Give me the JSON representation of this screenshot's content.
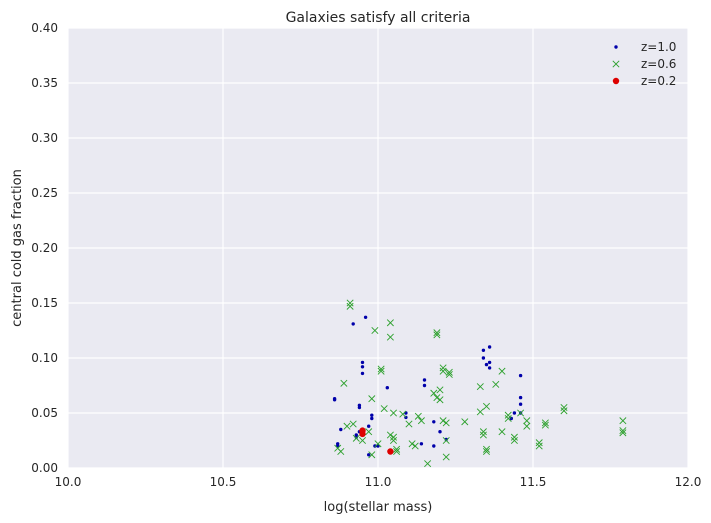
{
  "chart_data": {
    "type": "scatter",
    "title": "Galaxies satisfy all criteria",
    "xlabel": "log(stellar mass)",
    "ylabel": "central cold gas fraction",
    "xlim": [
      10.0,
      12.0
    ],
    "ylim": [
      0.0,
      0.4
    ],
    "xticks": [
      "10.0",
      "10.5",
      "11.0",
      "11.5",
      "12.0"
    ],
    "yticks": [
      "0.00",
      "0.05",
      "0.10",
      "0.15",
      "0.20",
      "0.25",
      "0.30",
      "0.35",
      "0.40"
    ],
    "grid": true,
    "legend_position": "top-right",
    "background_color": "#EAEAF2",
    "series": [
      {
        "name": "z=1.0",
        "marker": "dot",
        "color": "#0000AA",
        "points": [
          [
            10.86,
            0.063
          ],
          [
            10.86,
            0.062
          ],
          [
            10.87,
            0.022
          ],
          [
            10.87,
            0.02
          ],
          [
            10.88,
            0.035
          ],
          [
            10.92,
            0.131
          ],
          [
            10.93,
            0.03
          ],
          [
            10.93,
            0.028
          ],
          [
            10.94,
            0.057
          ],
          [
            10.94,
            0.055
          ],
          [
            10.94,
            0.033
          ],
          [
            10.95,
            0.096
          ],
          [
            10.95,
            0.092
          ],
          [
            10.95,
            0.086
          ],
          [
            10.96,
            0.137
          ],
          [
            10.97,
            0.038
          ],
          [
            10.97,
            0.012
          ],
          [
            10.98,
            0.048
          ],
          [
            10.98,
            0.045
          ],
          [
            10.99,
            0.02
          ],
          [
            11.0,
            0.02
          ],
          [
            11.03,
            0.073
          ],
          [
            11.09,
            0.05
          ],
          [
            11.09,
            0.046
          ],
          [
            11.14,
            0.022
          ],
          [
            11.15,
            0.08
          ],
          [
            11.15,
            0.075
          ],
          [
            11.18,
            0.042
          ],
          [
            11.18,
            0.02
          ],
          [
            11.2,
            0.033
          ],
          [
            11.22,
            0.026
          ],
          [
            11.34,
            0.107
          ],
          [
            11.34,
            0.1
          ],
          [
            11.35,
            0.094
          ],
          [
            11.36,
            0.11
          ],
          [
            11.36,
            0.096
          ],
          [
            11.36,
            0.091
          ],
          [
            11.43,
            0.045
          ],
          [
            11.44,
            0.05
          ],
          [
            11.46,
            0.084
          ],
          [
            11.46,
            0.064
          ],
          [
            11.46,
            0.058
          ],
          [
            11.46,
            0.05
          ]
        ]
      },
      {
        "name": "z=0.6",
        "marker": "x",
        "color": "#2CA02C",
        "points": [
          [
            10.87,
            0.018
          ],
          [
            10.88,
            0.015
          ],
          [
            10.89,
            0.077
          ],
          [
            10.9,
            0.038
          ],
          [
            10.91,
            0.15
          ],
          [
            10.91,
            0.147
          ],
          [
            10.92,
            0.04
          ],
          [
            10.93,
            0.027
          ],
          [
            10.95,
            0.025
          ],
          [
            10.97,
            0.033
          ],
          [
            10.98,
            0.063
          ],
          [
            10.98,
            0.012
          ],
          [
            10.99,
            0.125
          ],
          [
            11.0,
            0.022
          ],
          [
            11.01,
            0.09
          ],
          [
            11.01,
            0.088
          ],
          [
            11.02,
            0.054
          ],
          [
            11.04,
            0.132
          ],
          [
            11.04,
            0.119
          ],
          [
            11.04,
            0.03
          ],
          [
            11.05,
            0.028
          ],
          [
            11.05,
            0.025
          ],
          [
            11.05,
            0.05
          ],
          [
            11.06,
            0.017
          ],
          [
            11.06,
            0.015
          ],
          [
            11.08,
            0.049
          ],
          [
            11.1,
            0.04
          ],
          [
            11.11,
            0.022
          ],
          [
            11.12,
            0.02
          ],
          [
            11.13,
            0.047
          ],
          [
            11.14,
            0.043
          ],
          [
            11.16,
            0.004
          ],
          [
            11.18,
            0.068
          ],
          [
            11.19,
            0.123
          ],
          [
            11.19,
            0.121
          ],
          [
            11.19,
            0.064
          ],
          [
            11.2,
            0.071
          ],
          [
            11.2,
            0.062
          ],
          [
            11.21,
            0.091
          ],
          [
            11.21,
            0.088
          ],
          [
            11.21,
            0.043
          ],
          [
            11.22,
            0.041
          ],
          [
            11.22,
            0.025
          ],
          [
            11.22,
            0.01
          ],
          [
            11.23,
            0.087
          ],
          [
            11.23,
            0.085
          ],
          [
            11.28,
            0.042
          ],
          [
            11.33,
            0.074
          ],
          [
            11.33,
            0.051
          ],
          [
            11.34,
            0.033
          ],
          [
            11.34,
            0.03
          ],
          [
            11.35,
            0.056
          ],
          [
            11.35,
            0.017
          ],
          [
            11.35,
            0.015
          ],
          [
            11.38,
            0.076
          ],
          [
            11.4,
            0.088
          ],
          [
            11.4,
            0.033
          ],
          [
            11.42,
            0.048
          ],
          [
            11.42,
            0.045
          ],
          [
            11.44,
            0.028
          ],
          [
            11.44,
            0.025
          ],
          [
            11.46,
            0.05
          ],
          [
            11.48,
            0.043
          ],
          [
            11.48,
            0.038
          ],
          [
            11.52,
            0.023
          ],
          [
            11.52,
            0.02
          ],
          [
            11.54,
            0.041
          ],
          [
            11.54,
            0.039
          ],
          [
            11.6,
            0.055
          ],
          [
            11.6,
            0.052
          ],
          [
            11.79,
            0.043
          ],
          [
            11.79,
            0.034
          ],
          [
            11.79,
            0.032
          ]
        ]
      },
      {
        "name": "z=0.2",
        "marker": "circle",
        "color": "#DD0000",
        "points": [
          [
            10.95,
            0.034
          ],
          [
            10.95,
            0.031
          ],
          [
            11.04,
            0.015
          ]
        ]
      }
    ]
  }
}
